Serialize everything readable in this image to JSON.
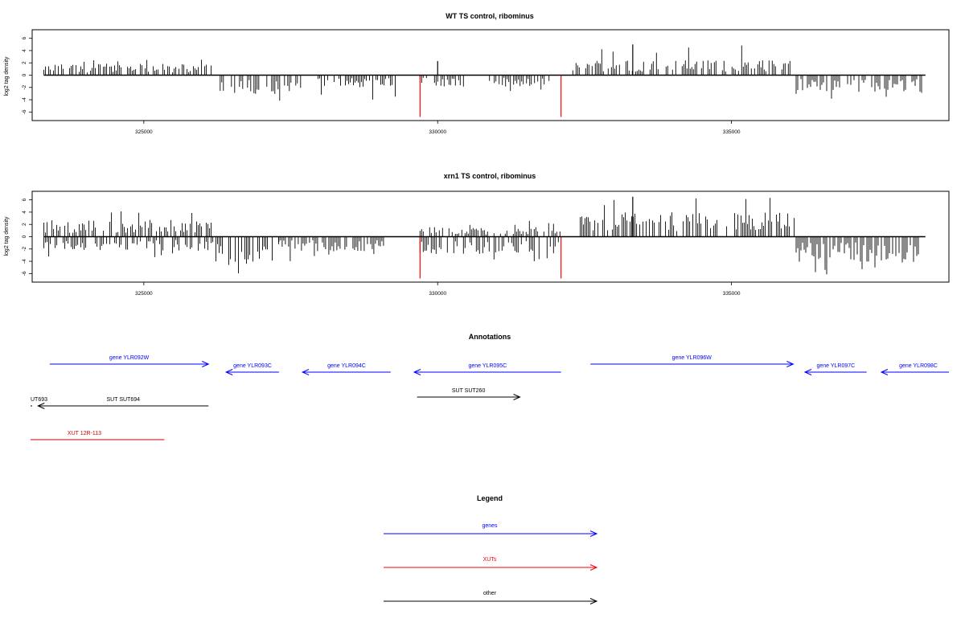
{
  "chart_data": [
    {
      "type": "bar",
      "title": "WT TS control, ribominus",
      "ylabel": "log2 tag density",
      "xlabel": "",
      "xlim": [
        323100,
        338700
      ],
      "ylim": [
        -7,
        7
      ],
      "yticks": [
        6,
        4,
        2,
        0,
        -2,
        -4,
        -6
      ],
      "xticks": [
        325000,
        330000,
        335000
      ],
      "xtick_labels": [
        "325000",
        "330000",
        "335000"
      ],
      "highlight_color": "#ff0000",
      "bar_color": "#000000",
      "regions": [
        {
          "start": 323300,
          "end": 326200,
          "strand": "+",
          "mean": 1.2,
          "max": 2.8
        },
        {
          "start": 326300,
          "end": 327700,
          "strand": "-",
          "mean": 2.0,
          "max": 4.6
        },
        {
          "start": 327800,
          "end": 329300,
          "strand": "-",
          "mean": 1.3,
          "max": 4.3
        },
        {
          "start": 329700,
          "end": 330500,
          "strand": "-",
          "mean": 1.2,
          "max": 2.3
        },
        {
          "start": 330800,
          "end": 331900,
          "strand": "-",
          "mean": 1.2,
          "max": 2.6
        },
        {
          "start": 332300,
          "end": 336000,
          "strand": "+",
          "mean": 1.6,
          "max": 5.0
        },
        {
          "start": 336100,
          "end": 338300,
          "strand": "-",
          "mean": 1.8,
          "max": 4.0
        }
      ],
      "spikes": [
        {
          "x": 329700,
          "y": -6.8,
          "highlight": true
        },
        {
          "x": 332100,
          "y": -6.8,
          "highlight": true
        },
        {
          "x": 330000,
          "y": 2.3,
          "highlight": false
        },
        {
          "x": 333320,
          "y": 5.0,
          "highlight": false
        }
      ]
    },
    {
      "type": "bar",
      "title": "xrn1 TS control, ribominus",
      "ylabel": "log2 tag density",
      "xlabel": "",
      "xlim": [
        323100,
        338700
      ],
      "ylim": [
        -7,
        7
      ],
      "yticks": [
        6,
        4,
        2,
        0,
        -2,
        -4,
        -6
      ],
      "xticks": [
        325000,
        330000,
        335000
      ],
      "xtick_labels": [
        "325000",
        "330000",
        "335000"
      ],
      "highlight_color": "#ff0000",
      "bar_color": "#000000",
      "regions": [
        {
          "start": 323300,
          "end": 326200,
          "strand": "+",
          "mean": 1.8,
          "max": 4.2
        },
        {
          "start": 323300,
          "end": 326200,
          "strand": "-",
          "mean": 1.5,
          "max": 3.6
        },
        {
          "start": 326200,
          "end": 327300,
          "strand": "-",
          "mean": 3.0,
          "max": 6.2
        },
        {
          "start": 327300,
          "end": 329100,
          "strand": "-",
          "mean": 1.6,
          "max": 4.0
        },
        {
          "start": 329700,
          "end": 332100,
          "strand": "+",
          "mean": 1.0,
          "max": 2.6
        },
        {
          "start": 329700,
          "end": 332100,
          "strand": "-",
          "mean": 1.8,
          "max": 4.0
        },
        {
          "start": 332400,
          "end": 336100,
          "strand": "+",
          "mean": 2.6,
          "max": 6.5
        },
        {
          "start": 336100,
          "end": 338200,
          "strand": "-",
          "mean": 2.7,
          "max": 6.8
        }
      ],
      "spikes": [
        {
          "x": 329700,
          "y": -6.8,
          "highlight": true
        },
        {
          "x": 332100,
          "y": -6.8,
          "highlight": true
        },
        {
          "x": 333320,
          "y": 6.5,
          "highlight": false
        }
      ]
    }
  ],
  "annotations": {
    "title": "Annotations",
    "features": [
      {
        "label": "gene YLR092W",
        "start": 323400,
        "end": 326100,
        "row": 1,
        "strand": "+",
        "color": "#0000ff"
      },
      {
        "label": "gene YLR093C",
        "start": 326400,
        "end": 327300,
        "row": 2,
        "strand": "-",
        "color": "#0000ff"
      },
      {
        "label": "gene YLR094C",
        "start": 327700,
        "end": 329200,
        "row": 2,
        "strand": "-",
        "color": "#0000ff"
      },
      {
        "label": "gene YLR095C",
        "start": 329600,
        "end": 332100,
        "row": 2,
        "strand": "-",
        "color": "#0000ff"
      },
      {
        "label": "gene YLR096W",
        "start": 332600,
        "end": 336050,
        "row": 1,
        "strand": "+",
        "color": "#0000ff"
      },
      {
        "label": "gene YLR097C",
        "start": 336250,
        "end": 337300,
        "row": 2,
        "strand": "-",
        "color": "#0000ff"
      },
      {
        "label": "gene YLR098C",
        "start": 337550,
        "end": 339100,
        "row": 2,
        "strand": "-",
        "color": "#0000ff"
      },
      {
        "label": "SUT SUT260",
        "start": 329650,
        "end": 331400,
        "row": 3,
        "strand": "+",
        "color": "#000000"
      },
      {
        "label": "UT693",
        "start": 322800,
        "end": 323100,
        "row": 4,
        "strand": "",
        "color": "#000000"
      },
      {
        "label": "SUT SUT694",
        "start": 323200,
        "end": 326100,
        "row": 4,
        "strand": "-",
        "color": "#000000"
      },
      {
        "label": "XUT 12R-113",
        "start": 322800,
        "end": 325350,
        "row": 5,
        "strand": "",
        "color": "#cc0000"
      }
    ]
  },
  "legend": {
    "title": "Legend",
    "items": [
      {
        "label": "genes",
        "color": "#0000ff"
      },
      {
        "label": "XUTs",
        "color": "#ff0000"
      },
      {
        "label": "other",
        "color": "#000000"
      }
    ]
  }
}
